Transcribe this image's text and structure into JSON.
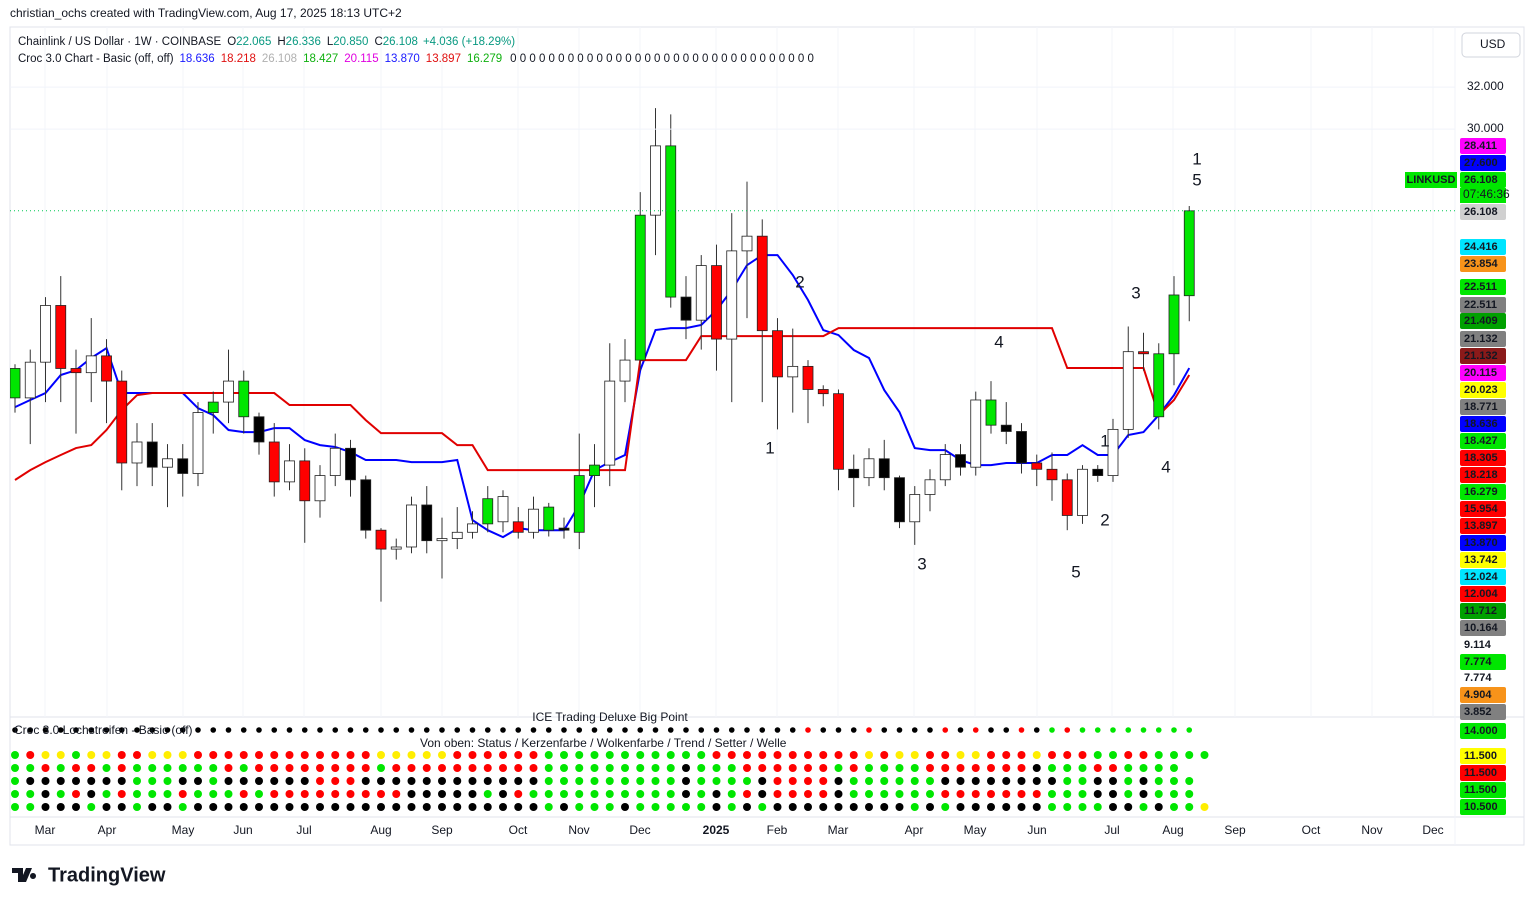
{
  "header": {
    "attribution": "christian_ochs created with TradingView.com, Aug 17, 2025 18:13 UTC+2",
    "currency": "USD",
    "logo": "TradingView"
  },
  "legend": {
    "symbol": "Chainlink / US Dollar · 1W · COINBASE",
    "ohlc": [
      {
        "key": "O",
        "value": "22.065"
      },
      {
        "key": "H",
        "value": "26.336"
      },
      {
        "key": "L",
        "value": "20.850"
      },
      {
        "key": "C",
        "value": "26.108"
      }
    ],
    "change": "+4.036 (+18.29%)",
    "indicator": "Croc 3.0 Chart - Basic (off, off)",
    "indicator_values": [
      {
        "text": "18.636",
        "color": "#1a1aff"
      },
      {
        "text": "18.218",
        "color": "#e01010"
      },
      {
        "text": "26.108",
        "color": "#b0b0b0"
      },
      {
        "text": "18.427",
        "color": "#10b010"
      },
      {
        "text": "20.115",
        "color": "#e000e0"
      },
      {
        "text": "13.870",
        "color": "#1a1aff"
      },
      {
        "text": "13.897",
        "color": "#e01010"
      },
      {
        "text": "16.279",
        "color": "#10b010"
      }
    ],
    "zeros": "0 0 0 0 0 0 0 0 0 0 0 0 0 0 0 0 0 0 0 0 0 0 0 0 0 0 0 0 0 0 0 0"
  },
  "chart_data": {
    "type": "candlestick",
    "ylim": [
      2.1,
      34.86
    ],
    "yticks": [
      {
        "value": 32,
        "label": "32.000"
      },
      {
        "value": 30,
        "label": "30.000"
      }
    ],
    "grid": true,
    "open": [
      17.2,
      17.2,
      18.9,
      21.6,
      18.6,
      18.4,
      19.2,
      18,
      14.1,
      15.1,
      13.9,
      14.3,
      13.6,
      16.5,
      17,
      18,
      16.3,
      15.1,
      13.2,
      14.2,
      12.3,
      13.5,
      14.8,
      13.3,
      10.9,
      10,
      10.1,
      12.1,
      10.4,
      10.5,
      10.8,
      11.2,
      11.3,
      11.3,
      10.8,
      10.9,
      11,
      10.8,
      13.5,
      14,
      18,
      19,
      25.9,
      29.2,
      22,
      20.9,
      23.5,
      20,
      24.2,
      24.9,
      20.4,
      18.2,
      18.7,
      17.6,
      17.4,
      13.8,
      13.4,
      14.3,
      13.4,
      11.3,
      12.6,
      13.3,
      14.5,
      13.9,
      17.1,
      15.9,
      15.6,
      14.1,
      13.8,
      13.3,
      11.6,
      13.8,
      13.5,
      15.7,
      19.4,
      16.3,
      19.3,
      22.065
    ],
    "high": [
      18.8,
      19.5,
      22,
      23,
      19.5,
      21,
      20,
      18.5,
      16,
      16,
      15,
      15,
      17,
      17.5,
      19.5,
      18.5,
      16.5,
      16,
      15,
      14.8,
      14,
      15.5,
      15.2,
      13.5,
      11,
      10.5,
      12.5,
      13,
      11.5,
      12,
      11.8,
      13,
      12.8,
      12,
      12.5,
      12.2,
      11.5,
      15.5,
      15,
      19.8,
      20,
      27,
      31,
      30.7,
      23,
      24,
      24.5,
      26,
      27.5,
      25.7,
      21,
      20.5,
      19,
      17.8,
      17.6,
      14.5,
      14.8,
      15.2,
      13.5,
      13,
      13.8,
      15,
      15,
      17.5,
      18,
      17,
      16,
      14.5,
      14.6,
      13.6,
      14,
      14,
      16.2,
      20.6,
      20.3,
      19.8,
      23,
      26.336
    ],
    "low": [
      16.5,
      15,
      17,
      17,
      15.5,
      17,
      16,
      12.8,
      13,
      13,
      12,
      12.5,
      13,
      15.5,
      16,
      15.5,
      14.5,
      12.5,
      12.8,
      10.3,
      11.5,
      13,
      12.5,
      10.5,
      7.5,
      9.5,
      9.8,
      9.8,
      8.6,
      10,
      10.5,
      10.8,
      10.8,
      10.5,
      10.5,
      10.6,
      10.5,
      10,
      12,
      13,
      17,
      18.5,
      24,
      21.5,
      20,
      19.5,
      18.5,
      17,
      21,
      17,
      15.7,
      16.5,
      16,
      16.8,
      12.8,
      12,
      13,
      12.8,
      11,
      10.2,
      11.8,
      13,
      13.5,
      13.5,
      15.5,
      15,
      13.6,
      13,
      12.3,
      10.9,
      11.2,
      13.2,
      13.2,
      15.3,
      18.5,
      15.7,
      17.8,
      20.85
    ],
    "close": [
      18.6,
      18.9,
      21.6,
      18.6,
      18.4,
      19.2,
      18,
      14.1,
      15.1,
      13.9,
      14.3,
      13.6,
      16.5,
      17,
      18,
      16.3,
      15.1,
      13.2,
      14.2,
      12.3,
      13.5,
      14.8,
      13.3,
      10.9,
      10,
      10.1,
      12.1,
      10.4,
      10.5,
      10.8,
      11.2,
      12.4,
      12.5,
      10.8,
      11.9,
      12,
      10.9,
      13.5,
      14,
      18,
      19,
      25.9,
      29.2,
      22,
      20.9,
      23.5,
      20,
      24.2,
      24.9,
      20.4,
      18.2,
      18.7,
      17.6,
      17.4,
      13.8,
      13.4,
      14.3,
      13.4,
      11.3,
      12.6,
      13.3,
      14.5,
      13.9,
      17.1,
      15.9,
      15.6,
      14.1,
      13.8,
      13.3,
      11.6,
      13.8,
      13.5,
      15.7,
      19.4,
      19.3,
      19.3,
      22.1,
      26.108
    ],
    "candle_colors": "gwwrrwrrwkwkwgwgkrwrwwkkrwwkwwwgwrwgkggwwgwgkwrwwrrwrrrkwkkwwwkwgkkrrrwkwwrggg",
    "palette": {
      "g": "#00e600",
      "w": "#ffffff",
      "r": "#ff0000",
      "k": "#000000",
      "y": "#ffee00"
    },
    "series": [
      {
        "color": "#0000ff",
        "values": [
          16.76,
          17.1,
          17.43,
          18.29,
          18.52,
          19.1,
          19.57,
          17.43,
          17.43,
          17.43,
          17.43,
          17.43,
          16.71,
          16.38,
          15.67,
          15.57,
          15.57,
          15.76,
          15.76,
          15.19,
          14.95,
          14.86,
          14.62,
          14.24,
          14.24,
          14.24,
          14.14,
          14.14,
          14.14,
          14.24,
          11.38,
          10.9,
          10.57,
          11,
          10.9,
          10.9,
          10.9,
          12.1,
          13.76,
          14.14,
          14.48,
          18.52,
          20.43,
          20.52,
          20.52,
          20.67,
          21.38,
          22.33,
          23.52,
          24,
          24,
          23.05,
          21.86,
          20.43,
          20.19,
          19.48,
          19.1,
          17.57,
          16.52,
          14.81,
          14.71,
          14.71,
          14.24,
          14,
          14,
          14.1,
          14.1,
          14.1,
          14.48,
          14.48,
          14.95,
          14.48,
          14.48,
          15.43,
          15.57,
          16.38,
          17.33,
          18.62
        ]
      },
      {
        "color": "#e00000",
        "values": [
          13.29,
          13.76,
          14.14,
          14.48,
          14.81,
          14.95,
          15.67,
          16.62,
          17.33,
          17.43,
          17.43,
          17.43,
          17.43,
          17.43,
          17.43,
          17.43,
          17.43,
          17.43,
          16.86,
          16.86,
          16.86,
          16.86,
          16.86,
          16.14,
          15.52,
          15.52,
          15.52,
          15.52,
          15.52,
          14.95,
          14.95,
          13.76,
          13.76,
          13.76,
          13.76,
          13.76,
          13.76,
          13.76,
          13.76,
          13.76,
          13.76,
          19,
          19,
          19,
          19,
          20.14,
          20.14,
          20.14,
          20.14,
          20.14,
          20.14,
          20.14,
          20.14,
          20.14,
          20.52,
          20.52,
          20.52,
          20.52,
          20.52,
          20.52,
          20.52,
          20.52,
          20.52,
          20.52,
          20.52,
          20.52,
          20.52,
          20.52,
          20.52,
          18.62,
          18.62,
          18.62,
          18.62,
          18.62,
          18.62,
          16.38,
          17.1,
          18.29
        ]
      }
    ]
  },
  "symbol_tag": "LINKUSD",
  "countdown": "07:46:36",
  "price_labels": [
    {
      "text": "28.411",
      "color": "#ff00ff",
      "ink": "#ffffff"
    },
    {
      "text": "27.600",
      "color": "#0000ff",
      "ink": "#ffffff"
    },
    {
      "text": "26.108",
      "color": "#00e600",
      "ink": "#000000"
    },
    {
      "text": "26.108",
      "color": "#d0d0d0",
      "ink": "#000000"
    },
    {
      "text": "24.416",
      "color": "#00e5ff",
      "ink": "#000000"
    },
    {
      "text": "23.854",
      "color": "#f7931a",
      "ink": "#000000"
    },
    {
      "text": "22.511",
      "color": "#00e600",
      "ink": "#000000"
    },
    {
      "text": "22.511",
      "color": "#808080",
      "ink": "#ffffff"
    },
    {
      "text": "21.409",
      "color": "#00a000",
      "ink": "#ffffff"
    },
    {
      "text": "21.132",
      "color": "#808080",
      "ink": "#ffffff"
    },
    {
      "text": "21.132",
      "color": "#8b1a1a",
      "ink": "#ffffff"
    },
    {
      "text": "20.115",
      "color": "#ff00ff",
      "ink": "#ffffff"
    },
    {
      "text": "20.023",
      "color": "#ffff00",
      "ink": "#000000"
    },
    {
      "text": "18.771",
      "color": "#808080",
      "ink": "#ffffff"
    },
    {
      "text": "18.636",
      "color": "#0000ff",
      "ink": "#ffffff"
    },
    {
      "text": "18.427",
      "color": "#00e600",
      "ink": "#000000"
    },
    {
      "text": "18.305",
      "color": "#ff0000",
      "ink": "#ffffff"
    },
    {
      "text": "18.218",
      "color": "#ff0000",
      "ink": "#ffffff"
    },
    {
      "text": "16.279",
      "color": "#00e600",
      "ink": "#000000"
    },
    {
      "text": "15.954",
      "color": "#ff0000",
      "ink": "#ffffff"
    },
    {
      "text": "13.897",
      "color": "#ff0000",
      "ink": "#ffffff"
    },
    {
      "text": "13.870",
      "color": "#0000ff",
      "ink": "#ffffff"
    },
    {
      "text": "13.742",
      "color": "#ffff00",
      "ink": "#000000"
    },
    {
      "text": "12.024",
      "color": "#00e5ff",
      "ink": "#000000"
    },
    {
      "text": "12.004",
      "color": "#ff0000",
      "ink": "#ffffff"
    },
    {
      "text": "11.712",
      "color": "#00a000",
      "ink": "#ffffff"
    },
    {
      "text": "10.164",
      "color": "#808080",
      "ink": "#ffffff"
    },
    {
      "text": "9.114",
      "color": "#ffffff",
      "ink": "#000000"
    },
    {
      "text": "7.774",
      "color": "#00e600",
      "ink": "#000000"
    },
    {
      "text": "7.774",
      "color": "#ffffff",
      "ink": "#000000"
    },
    {
      "text": "4.904",
      "color": "#f7931a",
      "ink": "#000000"
    },
    {
      "text": "3.852",
      "color": "#808080",
      "ink": "#ffffff"
    },
    {
      "text": "14.000",
      "color": "#00e600",
      "ink": "#000000"
    },
    {
      "text": "11.500",
      "color": "#ffff00",
      "ink": "#000000"
    },
    {
      "text": "11.500",
      "color": "#ff0000",
      "ink": "#ffffff"
    },
    {
      "text": "11.500",
      "color": "#00e600",
      "ink": "#000000"
    },
    {
      "text": "10.500",
      "color": "#00e600",
      "ink": "#000000"
    }
  ],
  "wave_labels": [
    {
      "text": "1",
      "color": "#f7931a"
    },
    {
      "text": "5",
      "color": "#1ea7c5"
    },
    {
      "text": "2",
      "color": "#1ea7c5"
    },
    {
      "text": "1",
      "color": "#1ea7c5"
    },
    {
      "text": "3",
      "color": "#1ea7c5"
    },
    {
      "text": "4",
      "color": "#1ea7c5"
    },
    {
      "text": "2",
      "color": "#1ea7c5"
    },
    {
      "text": "5",
      "color": "#1ea7c5"
    },
    {
      "text": "1",
      "color": "#1ea7c5"
    },
    {
      "text": "3",
      "color": "#1ea7c5"
    },
    {
      "text": "4",
      "color": "#1ea7c5"
    }
  ],
  "lower_pane": {
    "title": "Croc 3.0 Lochstreifen - Basic (off)",
    "subtitle": "ICE Trading Deluxe Big Point",
    "caption": "Von oben: Status / Kerzenfarbe / Wolkenfarbe / Trend / Setter / Welle",
    "rows": [
      "kkkkkkkkkkkkkkkkkkkkkkkkkkkkkkkkkkkkkkkkkkkkkkkkkkkkrkkkrkkkkrkrkkrkgrgggggggg",
      "gryygyyrryyyrrrrrrrrrrrryyyyyrrrrrrgggggggggggrrrrrrrrrryryyrryyrrryrrrggrrgggg",
      "ggrgrrgrggggggrgrrrrrrrrgrrrrrrrrrrgggggggggkgggrrrrrrgrggggrrrrrrrkgggrrgggg",
      "gkkkkkkkgggkkgkkkkkkrrrkkkkkkkkkkkkgggggggggkggggkrrrrkggggggkkkkkkkkggkkgkggg",
      "ggkgrkgrgggrgggrgrrrrrrrrrkkkkkgkrggggggggggkgkgrkrrrrkggggggrrrrrrrgggkkgkggg",
      "ggkkkgkkgkkgkkkkkkkkkkkkkkkkkkkkkkkgkgggkgggggkgkgkkkkkkkkkgkgkkkkkkggggkkgkggy"
    ]
  },
  "x_axis_labels": [
    "Mar",
    "Apr",
    "May",
    "Jun",
    "Jul",
    "Aug",
    "Sep",
    "Oct",
    "Nov",
    "Dec",
    "2025",
    "Feb",
    "Mar",
    "Apr",
    "May",
    "Jun",
    "Jul",
    "Aug",
    "Sep",
    "Oct",
    "Nov",
    "Dec"
  ]
}
